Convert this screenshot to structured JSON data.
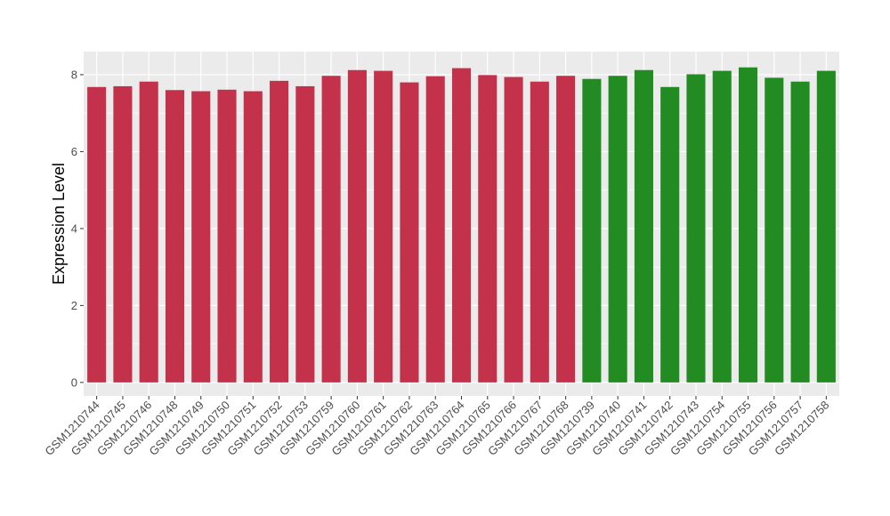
{
  "chart_data": {
    "type": "bar",
    "title": "",
    "xlabel": "",
    "ylabel": "Expression Level",
    "ylim": [
      -0.35,
      8.6
    ],
    "yticks": [
      0,
      2,
      4,
      6,
      8
    ],
    "grid": true,
    "legend": "none",
    "categories": [
      "GSM1210744",
      "GSM1210745",
      "GSM1210746",
      "GSM1210748",
      "GSM1210749",
      "GSM1210750",
      "GSM1210751",
      "GSM1210752",
      "GSM1210753",
      "GSM1210759",
      "GSM1210760",
      "GSM1210761",
      "GSM1210762",
      "GSM1210763",
      "GSM1210764",
      "GSM1210765",
      "GSM1210766",
      "GSM1210767",
      "GSM1210768",
      "GSM1210739",
      "GSM1210740",
      "GSM1210741",
      "GSM1210742",
      "GSM1210743",
      "GSM1210754",
      "GSM1210755",
      "GSM1210756",
      "GSM1210757",
      "GSM1210758"
    ],
    "values": [
      7.68,
      7.7,
      7.82,
      7.6,
      7.57,
      7.61,
      7.57,
      7.84,
      7.7,
      7.97,
      8.12,
      8.1,
      7.8,
      7.96,
      8.17,
      7.99,
      7.94,
      7.82,
      7.97,
      7.89,
      7.97,
      8.12,
      7.68,
      8.01,
      8.1,
      8.19,
      7.92,
      7.82,
      8.1
    ],
    "bar_colors": [
      "#c4314b",
      "#c4314b",
      "#c4314b",
      "#c4314b",
      "#c4314b",
      "#c4314b",
      "#c4314b",
      "#c4314b",
      "#c4314b",
      "#c4314b",
      "#c4314b",
      "#c4314b",
      "#c4314b",
      "#c4314b",
      "#c4314b",
      "#c4314b",
      "#c4314b",
      "#c4314b",
      "#c4314b",
      "#228b22",
      "#228b22",
      "#228b22",
      "#228b22",
      "#228b22",
      "#228b22",
      "#228b22",
      "#228b22",
      "#228b22",
      "#228b22"
    ],
    "panel_color": "#ebebeb",
    "grid_color": "#ffffff"
  }
}
